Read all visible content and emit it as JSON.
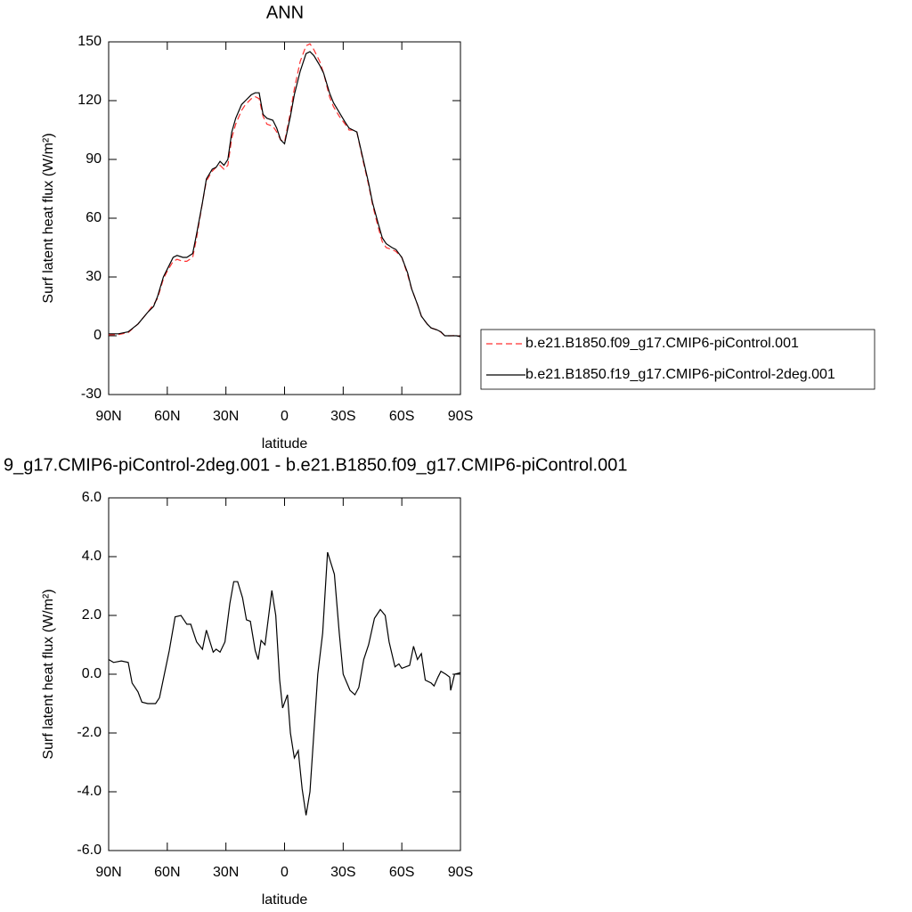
{
  "chart_data": [
    {
      "type": "line",
      "title": "ANN",
      "xlabel": "latitude",
      "ylabel": "Surf latent heat flux (W/m²)",
      "x": [
        90,
        85,
        80,
        75,
        70,
        67,
        65,
        62,
        60,
        57,
        55,
        52,
        50,
        47,
        45,
        42,
        40,
        37,
        35,
        33,
        31,
        29,
        27,
        25,
        22,
        20,
        17,
        15,
        13,
        11,
        9,
        6,
        4,
        2,
        0,
        -3,
        -5,
        -8,
        -11,
        -13,
        -15,
        -18,
        -20,
        -23,
        -25,
        -28,
        -31,
        -33,
        -35,
        -37,
        -40,
        -43,
        -45,
        -48,
        -50,
        -52,
        -55,
        -57,
        -60,
        -63,
        -65,
        -68,
        -70,
        -73,
        -75,
        -78,
        -80,
        -82,
        -85,
        -88,
        -90
      ],
      "series": [
        {
          "name": "b.e21.B1850.f09_g17.CMIP6-piControl.001",
          "color": "#ff3030",
          "dash": true,
          "values": [
            0.5,
            0.6,
            1.6,
            6,
            12,
            16,
            19,
            29,
            33,
            38,
            39,
            38,
            38,
            40,
            50,
            68,
            79,
            84,
            86,
            87,
            85,
            87,
            101,
            108,
            115,
            118,
            121,
            122,
            121,
            112,
            108,
            107,
            104,
            100,
            99,
            114,
            126,
            140,
            148,
            149,
            146,
            140,
            134,
            122,
            117,
            112,
            108,
            105,
            105,
            104,
            90,
            77,
            67,
            55,
            48,
            45,
            44,
            43,
            40,
            31,
            24,
            16,
            10,
            6,
            4,
            3,
            1.8,
            0,
            0,
            0.2,
            -0.5
          ]
        },
        {
          "name": "b.e21.B1850.f19_g17.CMIP6-piControl-2deg.001",
          "color": "#000000",
          "dash": false,
          "values": [
            1,
            1,
            2,
            6,
            12,
            15,
            20,
            30,
            34,
            40,
            41,
            40,
            40,
            42,
            52,
            68,
            80,
            85,
            86,
            89,
            87,
            90,
            104,
            111,
            118,
            120,
            123,
            124,
            124,
            113,
            111,
            110,
            106,
            100,
            98,
            112,
            123,
            135,
            144,
            145,
            143,
            138,
            134,
            124,
            119,
            114,
            109,
            106,
            105,
            104,
            91,
            78,
            68,
            57,
            50,
            47,
            45,
            44,
            40,
            32,
            24,
            16,
            10,
            6,
            4,
            3,
            2,
            0,
            0,
            0,
            -0.5
          ]
        }
      ],
      "xlim": [
        90,
        -90
      ],
      "xticks": [
        {
          "value": 90,
          "label": "90N"
        },
        {
          "value": 60,
          "label": "60N"
        },
        {
          "value": 30,
          "label": "30N"
        },
        0,
        {
          "value": -30,
          "label": "30S"
        },
        {
          "value": -60,
          "label": "60S"
        },
        {
          "value": -90,
          "label": "90S"
        }
      ],
      "ylim": [
        -30,
        150
      ],
      "yticks": [
        -30,
        0,
        30,
        60,
        90,
        120,
        150
      ],
      "grid": false,
      "legend": "right"
    },
    {
      "type": "line",
      "title": "9_g17.CMIP6-piControl-2deg.001 - b.e21.B1850.f09_g17.CMIP6-piControl.001",
      "xlabel": "latitude",
      "ylabel": "Surf latent heat flux (W/m²)",
      "x": [
        90,
        87.5,
        83.5,
        80,
        78,
        75,
        73,
        70,
        66,
        64,
        61.5,
        59,
        56,
        53,
        50,
        48,
        45,
        42,
        40,
        36.5,
        35,
        33,
        30.5,
        28,
        26,
        24,
        21.5,
        19.5,
        17.5,
        15,
        13.5,
        12,
        10,
        6.5,
        4.5,
        2.5,
        1,
        -1.5,
        -3,
        -5,
        -7,
        -9,
        -11,
        -13,
        -15,
        -17,
        -19.5,
        -22,
        -25.5,
        -28,
        -30,
        -33.5,
        -36,
        -38,
        -40.5,
        -43,
        -46,
        -49,
        -51.5,
        -53.5,
        -56.5,
        -58.5,
        -60,
        -64,
        -66,
        -68,
        -70,
        -72,
        -75,
        -76.5,
        -78.5,
        -80,
        -82.5,
        -84.5,
        -85,
        -87,
        -90
      ],
      "series": [
        {
          "color": "#000000",
          "dash": false,
          "values": [
            0.5,
            0.4,
            0.45,
            0.4,
            -0.3,
            -0.6,
            -0.95,
            -1.0,
            -1.0,
            -0.8,
            0.0,
            0.8,
            1.95,
            2.0,
            1.7,
            1.7,
            1.1,
            0.85,
            1.5,
            0.75,
            0.85,
            0.75,
            1.1,
            2.4,
            3.15,
            3.15,
            2.6,
            1.85,
            1.8,
            0.8,
            0.5,
            1.15,
            1.0,
            2.85,
            2.0,
            -0.2,
            -1.15,
            -0.7,
            -2.0,
            -2.85,
            -2.6,
            -3.9,
            -4.8,
            -4.0,
            -2.0,
            0.0,
            1.4,
            4.15,
            3.4,
            1.4,
            0.0,
            -0.55,
            -0.7,
            -0.45,
            0.5,
            1.0,
            1.9,
            2.2,
            2.0,
            1.1,
            0.25,
            0.35,
            0.2,
            0.3,
            0.95,
            0.5,
            0.7,
            -0.2,
            -0.3,
            -0.4,
            -0.1,
            0.1,
            0.0,
            -0.1,
            -0.55,
            0.0,
            0.05
          ]
        }
      ],
      "xlim": [
        90,
        -90
      ],
      "xticks": [
        {
          "value": 90,
          "label": "90N"
        },
        {
          "value": 60,
          "label": "60N"
        },
        {
          "value": 30,
          "label": "30N"
        },
        0,
        {
          "value": -30,
          "label": "30S"
        },
        {
          "value": -60,
          "label": "60S"
        },
        {
          "value": -90,
          "label": "90S"
        }
      ],
      "ylim": [
        -6,
        6
      ],
      "yticks": [
        {
          "value": -6,
          "label": "-6.0"
        },
        {
          "value": -4,
          "label": "-4.0"
        },
        {
          "value": -2,
          "label": "-2.0"
        },
        {
          "value": 0,
          "label": "0.0"
        },
        {
          "value": 2,
          "label": "2.0"
        },
        {
          "value": 4,
          "label": "4.0"
        },
        {
          "value": 6,
          "label": "6.0"
        }
      ],
      "grid": false
    }
  ]
}
